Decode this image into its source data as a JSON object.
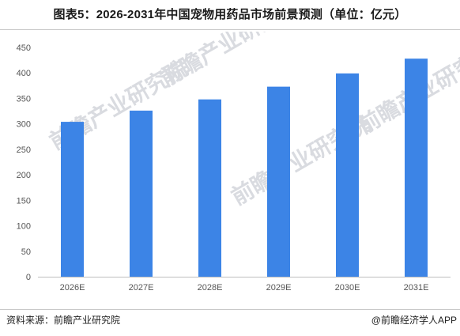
{
  "title": "图表5：2026-2031年中国宠物用药品市场前景预测（单位：亿元）",
  "source": "资料来源：前瞻产业研究院",
  "credit": "@前瞻经济学人APP",
  "watermark": "前瞻产业研究院",
  "colors": {
    "bar": "#3c84e6",
    "axis": "#bfbfbf",
    "tick_text": "#555555"
  },
  "chart_data": {
    "type": "bar",
    "title": "图表5：2026-2031年中国宠物用药品市场前景预测（单位：亿元）",
    "xlabel": "",
    "ylabel": "",
    "categories": [
      "2026E",
      "2027E",
      "2028E",
      "2029E",
      "2030E",
      "2031E"
    ],
    "values": [
      304,
      326,
      348,
      373,
      399,
      428
    ],
    "ylim": [
      0,
      450
    ],
    "yticks": [
      0,
      50,
      100,
      150,
      200,
      250,
      300,
      350,
      400,
      450
    ],
    "grid": false,
    "legend": "none"
  }
}
